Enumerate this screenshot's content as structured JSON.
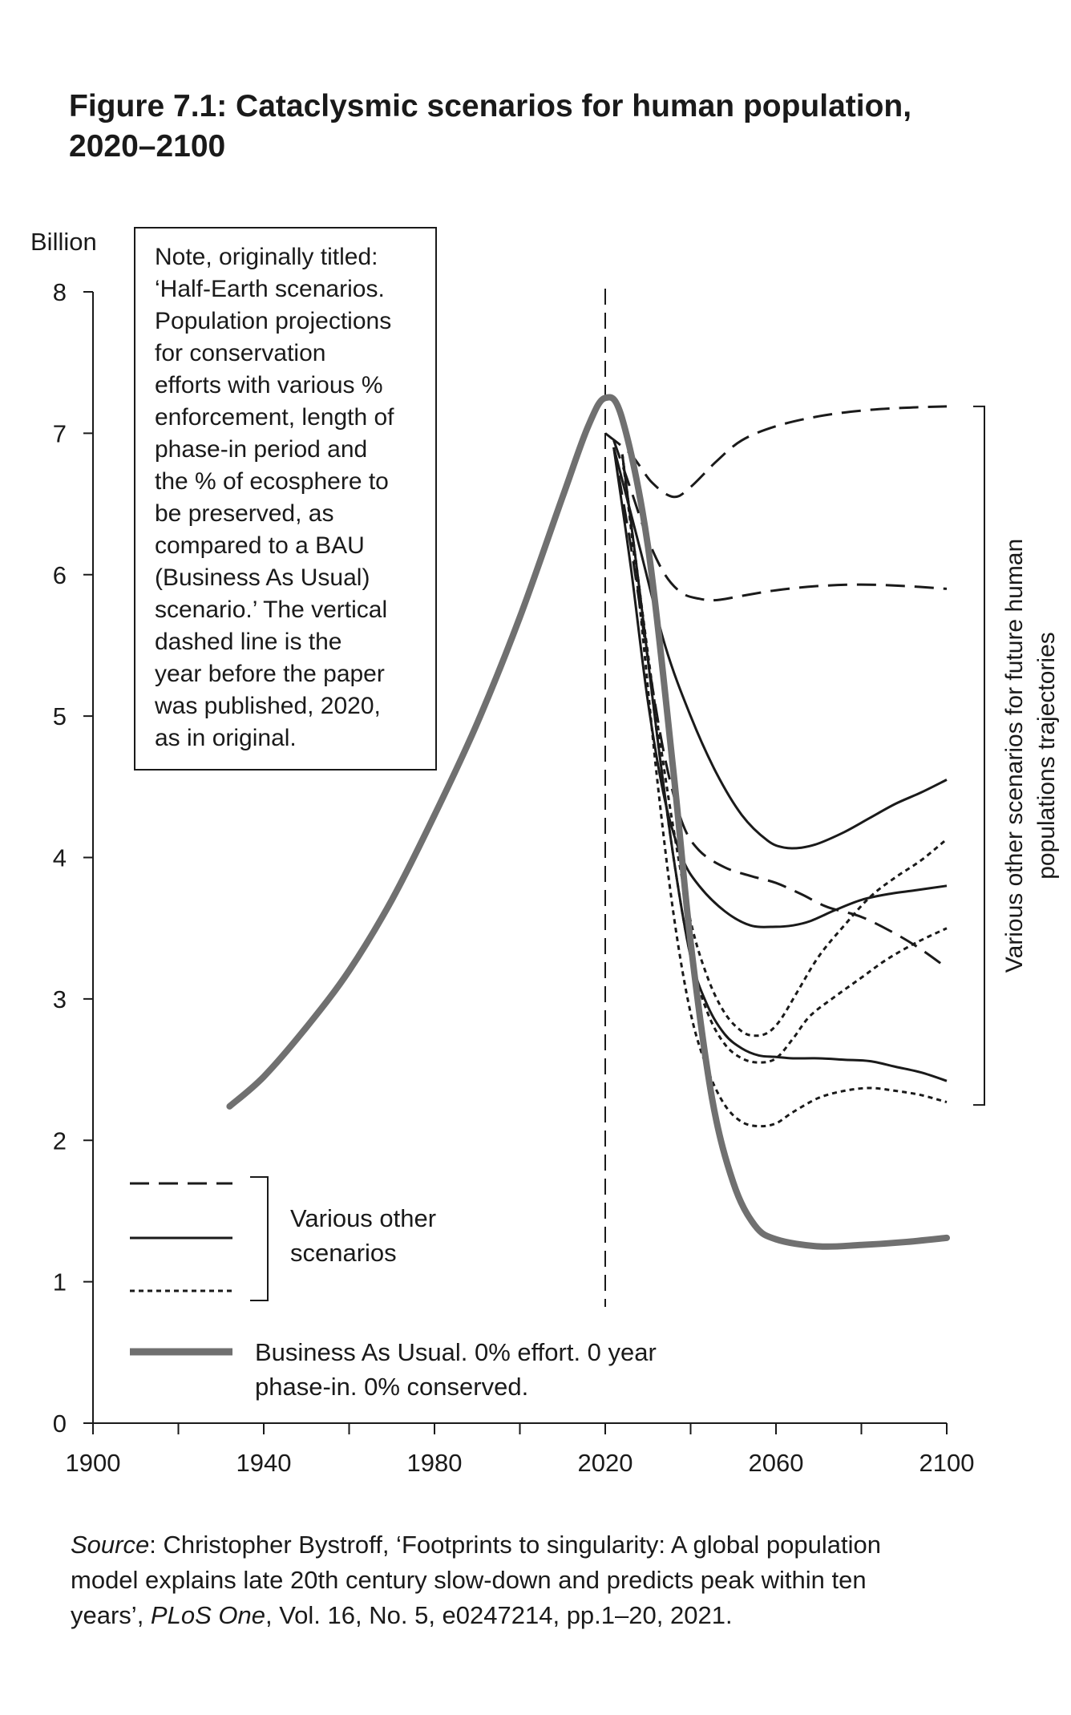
{
  "figure": {
    "title_line1": "Figure 7.1:  Cataclysmic scenarios for human population,",
    "title_line2": "2020–2100"
  },
  "note": {
    "lines": [
      "Note, originally titled:",
      "‘Half-Earth scenarios.",
      "Population projections",
      "for conservation",
      "efforts with various %",
      "enforcement, length of",
      "phase-in period and",
      "the % of ecosphere to",
      "be preserved, as",
      "compared to a BAU",
      "(Business As Usual)",
      "scenario.’ The vertical",
      "dashed line is the",
      "year before the paper",
      "was published, 2020,",
      "as in original."
    ]
  },
  "source": {
    "label": "Source",
    "line1": ": Christopher Bystroff, ‘Footprints to singularity: A global population",
    "line2": "model explains late 20th century slow-down and predicts peak within ten",
    "line3_a": "years’, ",
    "line3_journal": "PLoS One",
    "line3_b": ", Vol. 16, No. 5, e0247214, pp.1–20, 2021."
  },
  "chart_data": {
    "type": "line",
    "ylabel": "Billion",
    "xlabel": "",
    "xlim": [
      1900,
      2100
    ],
    "ylim": [
      0,
      8
    ],
    "x_ticks": [
      1900,
      1940,
      1980,
      2020,
      2060,
      2100
    ],
    "x_minor_ticks": [
      1920,
      1960,
      2000,
      2040,
      2080
    ],
    "y_ticks": [
      0,
      1,
      2,
      3,
      4,
      5,
      6,
      7,
      8
    ],
    "grid": false,
    "reference_line": {
      "x": 2020,
      "style": "dashed"
    },
    "right_bracket_label": "Various other scenarios for future human populations trajectories",
    "legend": {
      "placement": "bottom-left",
      "group_label_line1": "Various other",
      "group_label_line2": "scenarios",
      "bau_label_line1": "Business As Usual. 0% effort. 0 year",
      "bau_label_line2": "phase-in. 0% conserved."
    },
    "colors": {
      "bau": "#707070",
      "scenario": "#1a1a1a"
    },
    "series": [
      {
        "name": "Business As Usual. 0% effort. 0 year phase-in. 0% conserved.",
        "style": "bau",
        "x": [
          1932,
          1940,
          1950,
          1960,
          1970,
          1980,
          1990,
          2000,
          2010,
          2016,
          2020,
          2024,
          2030,
          2036,
          2040,
          2045,
          2050,
          2055,
          2060,
          2070,
          2080,
          2090,
          2100
        ],
        "y": [
          2.24,
          2.45,
          2.8,
          3.2,
          3.7,
          4.3,
          4.95,
          5.7,
          6.55,
          7.05,
          7.25,
          7.1,
          6.2,
          4.6,
          3.4,
          2.3,
          1.7,
          1.4,
          1.3,
          1.25,
          1.26,
          1.28,
          1.31
        ]
      },
      {
        "style": "dashed",
        "x": [
          2020,
          2026,
          2031,
          2036,
          2040,
          2046,
          2052,
          2060,
          2070,
          2080,
          2090,
          2100
        ],
        "y": [
          7.0,
          6.85,
          6.65,
          6.55,
          6.62,
          6.8,
          6.95,
          7.05,
          7.12,
          7.16,
          7.18,
          7.19
        ]
      },
      {
        "style": "dashed",
        "x": [
          2022,
          2026,
          2030,
          2034,
          2038,
          2042,
          2046,
          2052,
          2060,
          2070,
          2080,
          2090,
          2100
        ],
        "y": [
          6.95,
          6.6,
          6.25,
          6.0,
          5.87,
          5.83,
          5.82,
          5.85,
          5.89,
          5.92,
          5.93,
          5.92,
          5.9
        ]
      },
      {
        "style": "solid",
        "x": [
          2022,
          2028,
          2034,
          2040,
          2046,
          2052,
          2058,
          2062,
          2066,
          2070,
          2076,
          2082,
          2088,
          2094,
          2100
        ],
        "y": [
          6.9,
          6.2,
          5.5,
          5.0,
          4.6,
          4.3,
          4.12,
          4.07,
          4.07,
          4.1,
          4.18,
          4.28,
          4.38,
          4.46,
          4.55
        ]
      },
      {
        "style": "dashed",
        "x": [
          2022,
          2026,
          2030,
          2034,
          2038,
          2042,
          2048,
          2054,
          2060,
          2066,
          2072,
          2080,
          2088,
          2094,
          2100
        ],
        "y": [
          6.9,
          6.2,
          5.4,
          4.7,
          4.25,
          4.05,
          3.93,
          3.87,
          3.82,
          3.74,
          3.65,
          3.58,
          3.46,
          3.35,
          3.22
        ]
      },
      {
        "style": "solid",
        "x": [
          2022,
          2026,
          2030,
          2034,
          2038,
          2042,
          2048,
          2054,
          2060,
          2064,
          2068,
          2074,
          2080,
          2086,
          2093,
          2100
        ],
        "y": [
          6.9,
          6.05,
          5.1,
          4.4,
          4.0,
          3.8,
          3.62,
          3.52,
          3.51,
          3.52,
          3.55,
          3.63,
          3.7,
          3.74,
          3.77,
          3.8
        ]
      },
      {
        "style": "dotted",
        "x": [
          2024,
          2028,
          2032,
          2036,
          2040,
          2044,
          2048,
          2052,
          2055,
          2058,
          2061,
          2065,
          2070,
          2076,
          2082,
          2088,
          2094,
          2100
        ],
        "y": [
          6.85,
          5.9,
          5.0,
          4.2,
          3.55,
          3.15,
          2.9,
          2.77,
          2.74,
          2.76,
          2.85,
          3.05,
          3.3,
          3.52,
          3.72,
          3.86,
          3.98,
          4.13
        ]
      },
      {
        "style": "dotted",
        "x": [
          2024,
          2028,
          2032,
          2036,
          2040,
          2044,
          2048,
          2052,
          2056,
          2060,
          2064,
          2068,
          2074,
          2080,
          2086,
          2093,
          2100
        ],
        "y": [
          6.85,
          5.9,
          4.9,
          4.0,
          3.3,
          2.9,
          2.68,
          2.58,
          2.55,
          2.58,
          2.72,
          2.88,
          3.02,
          3.15,
          3.28,
          3.4,
          3.5
        ]
      },
      {
        "style": "solid",
        "x": [
          2024,
          2028,
          2032,
          2036,
          2040,
          2044,
          2048,
          2052,
          2056,
          2060,
          2064,
          2070,
          2076,
          2082,
          2088,
          2094,
          2100
        ],
        "y": [
          6.85,
          5.9,
          4.9,
          4.0,
          3.3,
          2.95,
          2.75,
          2.65,
          2.6,
          2.59,
          2.58,
          2.58,
          2.57,
          2.56,
          2.52,
          2.48,
          2.42
        ]
      },
      {
        "style": "dotted",
        "x": [
          2024,
          2028,
          2032,
          2036,
          2040,
          2044,
          2048,
          2052,
          2056,
          2060,
          2064,
          2070,
          2076,
          2082,
          2088,
          2094,
          2100
        ],
        "y": [
          6.85,
          5.8,
          4.6,
          3.6,
          2.9,
          2.5,
          2.25,
          2.13,
          2.1,
          2.12,
          2.2,
          2.3,
          2.35,
          2.37,
          2.35,
          2.32,
          2.27
        ]
      }
    ]
  }
}
